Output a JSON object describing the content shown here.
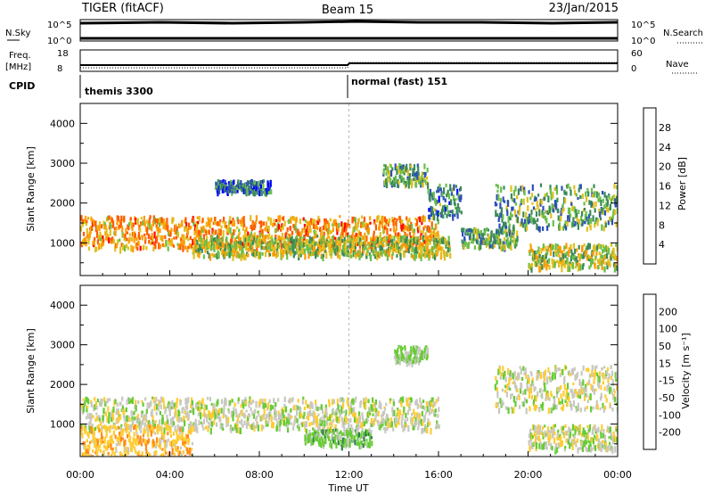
{
  "header": {
    "station": "TIGER (fitACF)",
    "beam": "Beam 15",
    "date": "23/Jan/2015"
  },
  "panels": {
    "nsky": {
      "left_label": "N.Sky",
      "left_ticks": [
        "10^5",
        "10^0"
      ],
      "right_label": "N.Search",
      "right_ticks": [
        "10^5",
        "10^0"
      ]
    },
    "freq": {
      "left_label_1": "Freq.",
      "left_label_2": "[MHz]",
      "left_ticks": [
        "18",
        "8"
      ],
      "right_label": "Nave",
      "right_ticks": [
        "60",
        "0"
      ]
    },
    "cpid": {
      "label": "CPID",
      "segments": [
        {
          "label": "themis 3300",
          "start_hour": 0
        },
        {
          "label": "normal (fast) 151",
          "start_hour": 12
        }
      ]
    }
  },
  "axes": {
    "xlabel": "Time UT",
    "xticks": [
      "00:00",
      "04:00",
      "08:00",
      "12:00",
      "16:00",
      "20:00",
      "00:00"
    ],
    "ylabel": "Slant Range [km]",
    "yticks": [
      "1000",
      "2000",
      "3000",
      "4000"
    ]
  },
  "power_colorbar": {
    "label": "Power [dB]",
    "ticks": [
      "4",
      "8",
      "12",
      "16",
      "20",
      "24",
      "28"
    ],
    "colors": [
      "#0000ff",
      "#2d4fb8",
      "#3a8a5a",
      "#6abf4b",
      "#e0c020",
      "#ff9a00",
      "#ff5a00",
      "#ff0000"
    ]
  },
  "velocity_colorbar": {
    "label": "Velocity [m s⁻¹]",
    "ticks": [
      "200",
      "100",
      "50",
      "15",
      "-15",
      "-50",
      "-100",
      "-200"
    ],
    "colors": [
      "#1a1acc",
      "#2a5acc",
      "#2f7f4f",
      "#66cc33",
      "#c8c8c0",
      "#ffcc33",
      "#ff8c1a",
      "#ff3300",
      "#e00000"
    ]
  },
  "chart_data": {
    "type": "heatmap",
    "title": "TIGER (fitACF) Beam 15 23/Jan/2015",
    "xlabel": "Time UT",
    "ylabel": "Slant Range [km]",
    "xlim_hours": [
      0,
      24
    ],
    "ylim_km": [
      180,
      4500
    ],
    "frequency_mhz": {
      "before_12": 10.5,
      "after_12": 11.0
    },
    "nave": {
      "before_12": 8,
      "after_12": 17
    },
    "power_db_features": [
      {
        "t0": 0.0,
        "t1": 16.0,
        "r0": 900,
        "r1": 1700,
        "db": 22
      },
      {
        "t0": 5.0,
        "t1": 16.5,
        "r0": 700,
        "r1": 1200,
        "db": 16
      },
      {
        "t0": 15.5,
        "t1": 17.0,
        "r0": 1700,
        "r1": 2500,
        "db": 10
      },
      {
        "t0": 13.5,
        "t1": 15.5,
        "r0": 2500,
        "r1": 3000,
        "db": 12
      },
      {
        "t0": 6.0,
        "t1": 8.5,
        "r0": 2300,
        "r1": 2600,
        "db": 8
      },
      {
        "t0": 17.0,
        "t1": 19.5,
        "r0": 900,
        "r1": 1400,
        "db": 12
      },
      {
        "t0": 18.5,
        "t1": 24.0,
        "r0": 1400,
        "r1": 2500,
        "db": 12
      },
      {
        "t0": 20.0,
        "t1": 24.0,
        "r0": 400,
        "r1": 1000,
        "db": 16
      }
    ],
    "velocity_features": [
      {
        "t0": 0.0,
        "t1": 16.0,
        "r0": 900,
        "r1": 1700,
        "v": 0
      },
      {
        "t0": 10.0,
        "t1": 13.0,
        "r0": 500,
        "r1": 900,
        "v": 30
      },
      {
        "t0": 0.0,
        "t1": 5.0,
        "r0": 200,
        "r1": 1000,
        "v": -40
      },
      {
        "t0": 18.5,
        "t1": 24.0,
        "r0": 1400,
        "r1": 2500,
        "v": 0
      },
      {
        "t0": 20.0,
        "t1": 24.0,
        "r0": 400,
        "r1": 1000,
        "v": 0
      },
      {
        "t0": 14.0,
        "t1": 15.5,
        "r0": 2600,
        "r1": 3000,
        "v": 20
      }
    ]
  }
}
